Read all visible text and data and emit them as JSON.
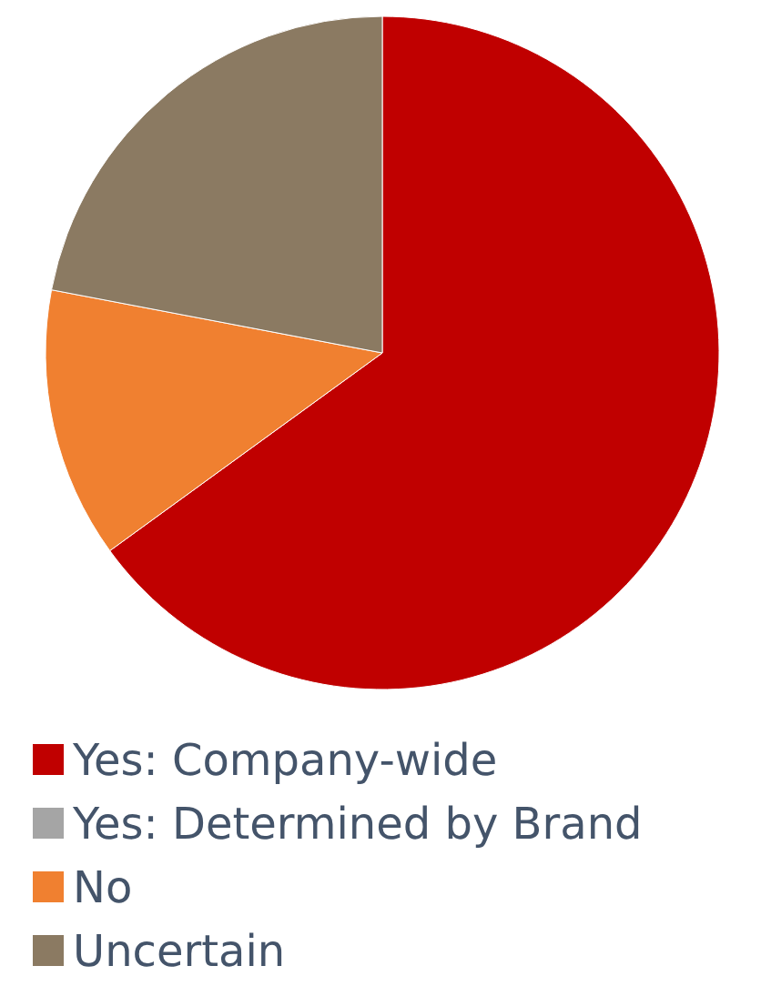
{
  "chart_data": {
    "type": "pie",
    "categories": [
      "Yes: Company-wide",
      "Yes: Determined by Brand",
      "No",
      "Uncertain"
    ],
    "values": [
      65,
      0,
      13,
      22
    ],
    "colors": [
      "#c00000",
      "#a5a5a5",
      "#f08030",
      "#8b7a62"
    ],
    "legend": "bottom"
  }
}
